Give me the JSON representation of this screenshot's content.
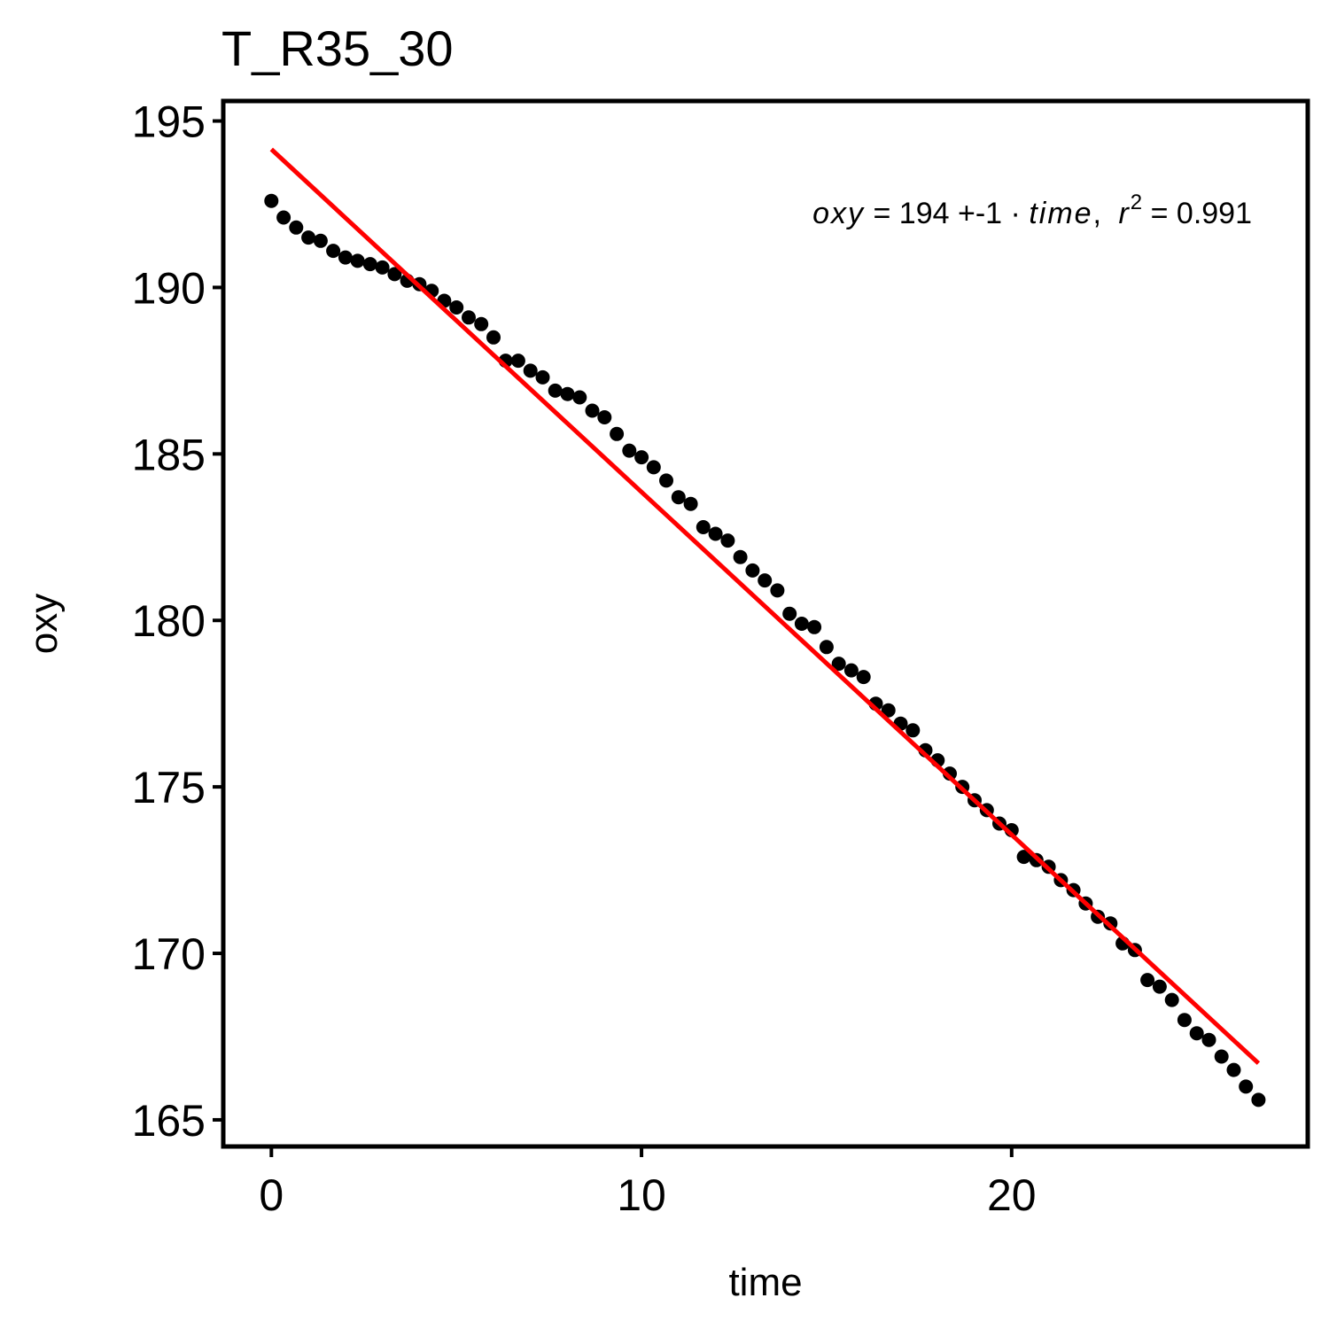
{
  "chart_data": {
    "type": "scatter",
    "title": "T_R35_30",
    "xlabel": "time",
    "ylabel": "oxy",
    "xlim": [
      -1.3,
      28.0
    ],
    "ylim": [
      164.2,
      195.6
    ],
    "xticks": [
      0,
      10,
      20
    ],
    "yticks": [
      165,
      170,
      175,
      180,
      185,
      190,
      195
    ],
    "grid": false,
    "series": [
      {
        "type": "scatter",
        "color": "#000000",
        "x": [
          0.0,
          0.33,
          0.67,
          1.0,
          1.33,
          1.67,
          2.0,
          2.33,
          2.67,
          3.0,
          3.33,
          3.67,
          4.0,
          4.33,
          4.67,
          5.0,
          5.33,
          5.67,
          6.0,
          6.33,
          6.67,
          7.0,
          7.33,
          7.67,
          8.0,
          8.33,
          8.67,
          9.0,
          9.33,
          9.67,
          10.0,
          10.33,
          10.67,
          11.0,
          11.33,
          11.67,
          12.0,
          12.33,
          12.67,
          13.0,
          13.33,
          13.67,
          14.0,
          14.33,
          14.67,
          15.0,
          15.33,
          15.67,
          16.0,
          16.33,
          16.67,
          17.0,
          17.33,
          17.67,
          18.0,
          18.33,
          18.67,
          19.0,
          19.33,
          19.67,
          20.0,
          20.33,
          20.67,
          21.0,
          21.33,
          21.67,
          22.0,
          22.33,
          22.67,
          23.0,
          23.33,
          23.67,
          24.0,
          24.33,
          24.67,
          25.0,
          25.33,
          25.67,
          26.0,
          26.33,
          26.67
        ],
        "y": [
          192.6,
          192.1,
          191.8,
          191.5,
          191.4,
          191.1,
          190.9,
          190.8,
          190.7,
          190.6,
          190.4,
          190.2,
          190.1,
          189.9,
          189.6,
          189.4,
          189.1,
          188.9,
          188.5,
          187.8,
          187.8,
          187.5,
          187.3,
          186.9,
          186.8,
          186.7,
          186.3,
          186.1,
          185.6,
          185.1,
          184.9,
          184.6,
          184.2,
          183.7,
          183.5,
          182.8,
          182.6,
          182.4,
          181.9,
          181.5,
          181.2,
          180.9,
          180.2,
          179.9,
          179.8,
          179.2,
          178.7,
          178.5,
          178.3,
          177.5,
          177.3,
          176.9,
          176.7,
          176.1,
          175.8,
          175.4,
          175.0,
          174.6,
          174.3,
          173.9,
          173.7,
          172.9,
          172.8,
          172.6,
          172.2,
          171.9,
          171.5,
          171.1,
          170.9,
          170.3,
          170.1,
          169.2,
          169.0,
          168.6,
          168.0,
          167.6,
          167.4,
          166.9,
          166.5,
          166.0,
          165.6
        ]
      },
      {
        "type": "line",
        "color": "#ff0000",
        "x": [
          0.0,
          26.67
        ],
        "y": [
          194.15,
          166.7
        ]
      }
    ],
    "annotation": {
      "lhs": "oxy",
      "eq": "=",
      "intercept": "194",
      "op": "+",
      "slope": "-1",
      "dot": "·",
      "var": "time",
      "comma": ",",
      "r": "r",
      "sup": "2",
      "eq2": "=",
      "r2": "0.991"
    }
  }
}
